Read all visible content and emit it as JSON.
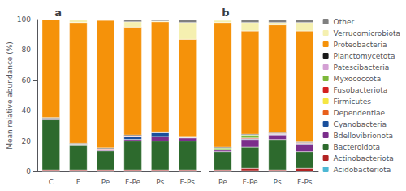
{
  "chart_data": [
    {
      "type": "bar",
      "stacked": true,
      "annotation": "a",
      "ylabel": "Mean relative abundance (%)",
      "categories": [
        "C",
        "F",
        "Pe",
        "F-Pe",
        "Ps",
        "F-Ps"
      ],
      "ylim": [
        0,
        100
      ],
      "yticks": [
        0,
        20,
        40,
        60,
        80,
        100
      ],
      "grid": false,
      "series": [
        {
          "name": "Acidobacteriota",
          "color": "#4db8d4",
          "values": [
            0.0,
            0.0,
            0.0,
            0.0,
            0.0,
            0.0
          ]
        },
        {
          "name": "Actinobacteriota",
          "color": "#b22222",
          "values": [
            1.0,
            1.0,
            1.0,
            1.0,
            1.0,
            1.0
          ]
        },
        {
          "name": "Bacteroidota",
          "color": "#2d6a2d",
          "values": [
            33.0,
            16.0,
            12.5,
            19.0,
            19.0,
            19.0
          ]
        },
        {
          "name": "Bdellovibrionota",
          "color": "#7b2d8b",
          "values": [
            1.0,
            0.5,
            0.5,
            1.0,
            3.0,
            2.0
          ]
        },
        {
          "name": "Cyanobacteria",
          "color": "#1a4f9c",
          "values": [
            0.0,
            0.5,
            0.5,
            2.0,
            2.5,
            0.5
          ]
        },
        {
          "name": "Dependentiae",
          "color": "#e8601c",
          "values": [
            0.0,
            0.0,
            0.0,
            0.0,
            0.0,
            0.0
          ]
        },
        {
          "name": "Firmicutes",
          "color": "#f5e642",
          "values": [
            0.0,
            0.0,
            0.0,
            0.0,
            0.0,
            0.0
          ]
        },
        {
          "name": "Fusobacteriota",
          "color": "#d42020",
          "values": [
            0.0,
            0.0,
            0.5,
            0.5,
            0.0,
            0.0
          ]
        },
        {
          "name": "Myxococcota",
          "color": "#7db83a",
          "values": [
            0.0,
            0.0,
            0.0,
            0.0,
            0.0,
            0.0
          ]
        },
        {
          "name": "Patescibacteria",
          "color": "#d4a0d4",
          "values": [
            0.0,
            0.0,
            0.0,
            0.0,
            0.0,
            0.0
          ]
        },
        {
          "name": "Planctomycetota",
          "color": "#1a1a1a",
          "values": [
            0.5,
            0.5,
            0.5,
            0.5,
            0.5,
            0.5
          ]
        },
        {
          "name": "Proteobacteria",
          "color": "#f5920a",
          "values": [
            64.5,
            79.5,
            84.0,
            71.0,
            72.5,
            64.0
          ]
        },
        {
          "name": "Verrucomicrobiota",
          "color": "#f5f0b0",
          "values": [
            0.0,
            2.0,
            0.0,
            3.5,
            0.5,
            11.0
          ]
        },
        {
          "name": "Other",
          "color": "#808080",
          "values": [
            0.0,
            0.0,
            0.5,
            1.5,
            1.0,
            2.0
          ]
        }
      ]
    },
    {
      "type": "bar",
      "stacked": true,
      "annotation": "b",
      "tick_labels": "x",
      "legend": "right",
      "categories": [
        "Pe",
        "F-Pe",
        "Ps",
        "F-Ps"
      ],
      "ylim": [
        0,
        100
      ],
      "yticks": [
        0,
        20,
        40,
        60,
        80,
        100
      ],
      "grid": false,
      "series": [
        {
          "name": "Acidobacteriota",
          "color": "#4db8d4",
          "values": [
            0.0,
            0.5,
            0.0,
            0.0
          ]
        },
        {
          "name": "Actinobacteriota",
          "color": "#b22222",
          "values": [
            1.0,
            1.5,
            1.0,
            2.0
          ]
        },
        {
          "name": "Bacteroidota",
          "color": "#2d6a2d",
          "values": [
            12.0,
            14.0,
            20.0,
            11.0
          ]
        },
        {
          "name": "Bdellovibrionota",
          "color": "#7b2d8b",
          "values": [
            1.0,
            5.0,
            3.0,
            5.0
          ]
        },
        {
          "name": "Cyanobacteria",
          "color": "#1a4f9c",
          "values": [
            0.5,
            0.5,
            0.5,
            0.5
          ]
        },
        {
          "name": "Dependentiae",
          "color": "#e8601c",
          "values": [
            0.0,
            0.0,
            0.0,
            0.0
          ]
        },
        {
          "name": "Firmicutes",
          "color": "#f5e642",
          "values": [
            0.0,
            0.0,
            0.0,
            0.0
          ]
        },
        {
          "name": "Fusobacteriota",
          "color": "#d42020",
          "values": [
            0.0,
            0.5,
            0.5,
            0.5
          ]
        },
        {
          "name": "Myxococcota",
          "color": "#7db83a",
          "values": [
            1.0,
            2.0,
            0.0,
            0.0
          ]
        },
        {
          "name": "Patescibacteria",
          "color": "#d4a0d4",
          "values": [
            0.0,
            0.0,
            0.0,
            0.0
          ]
        },
        {
          "name": "Planctomycetota",
          "color": "#1a1a1a",
          "values": [
            0.5,
            0.5,
            0.5,
            0.5
          ]
        },
        {
          "name": "Proteobacteria",
          "color": "#f5920a",
          "values": [
            82.0,
            68.0,
            71.0,
            73.0
          ]
        },
        {
          "name": "Verrucomicrobiota",
          "color": "#f5f0b0",
          "values": [
            1.5,
            5.5,
            1.5,
            5.5
          ]
        },
        {
          "name": "Other",
          "color": "#808080",
          "values": [
            0.5,
            2.0,
            2.0,
            2.0
          ]
        }
      ]
    }
  ]
}
